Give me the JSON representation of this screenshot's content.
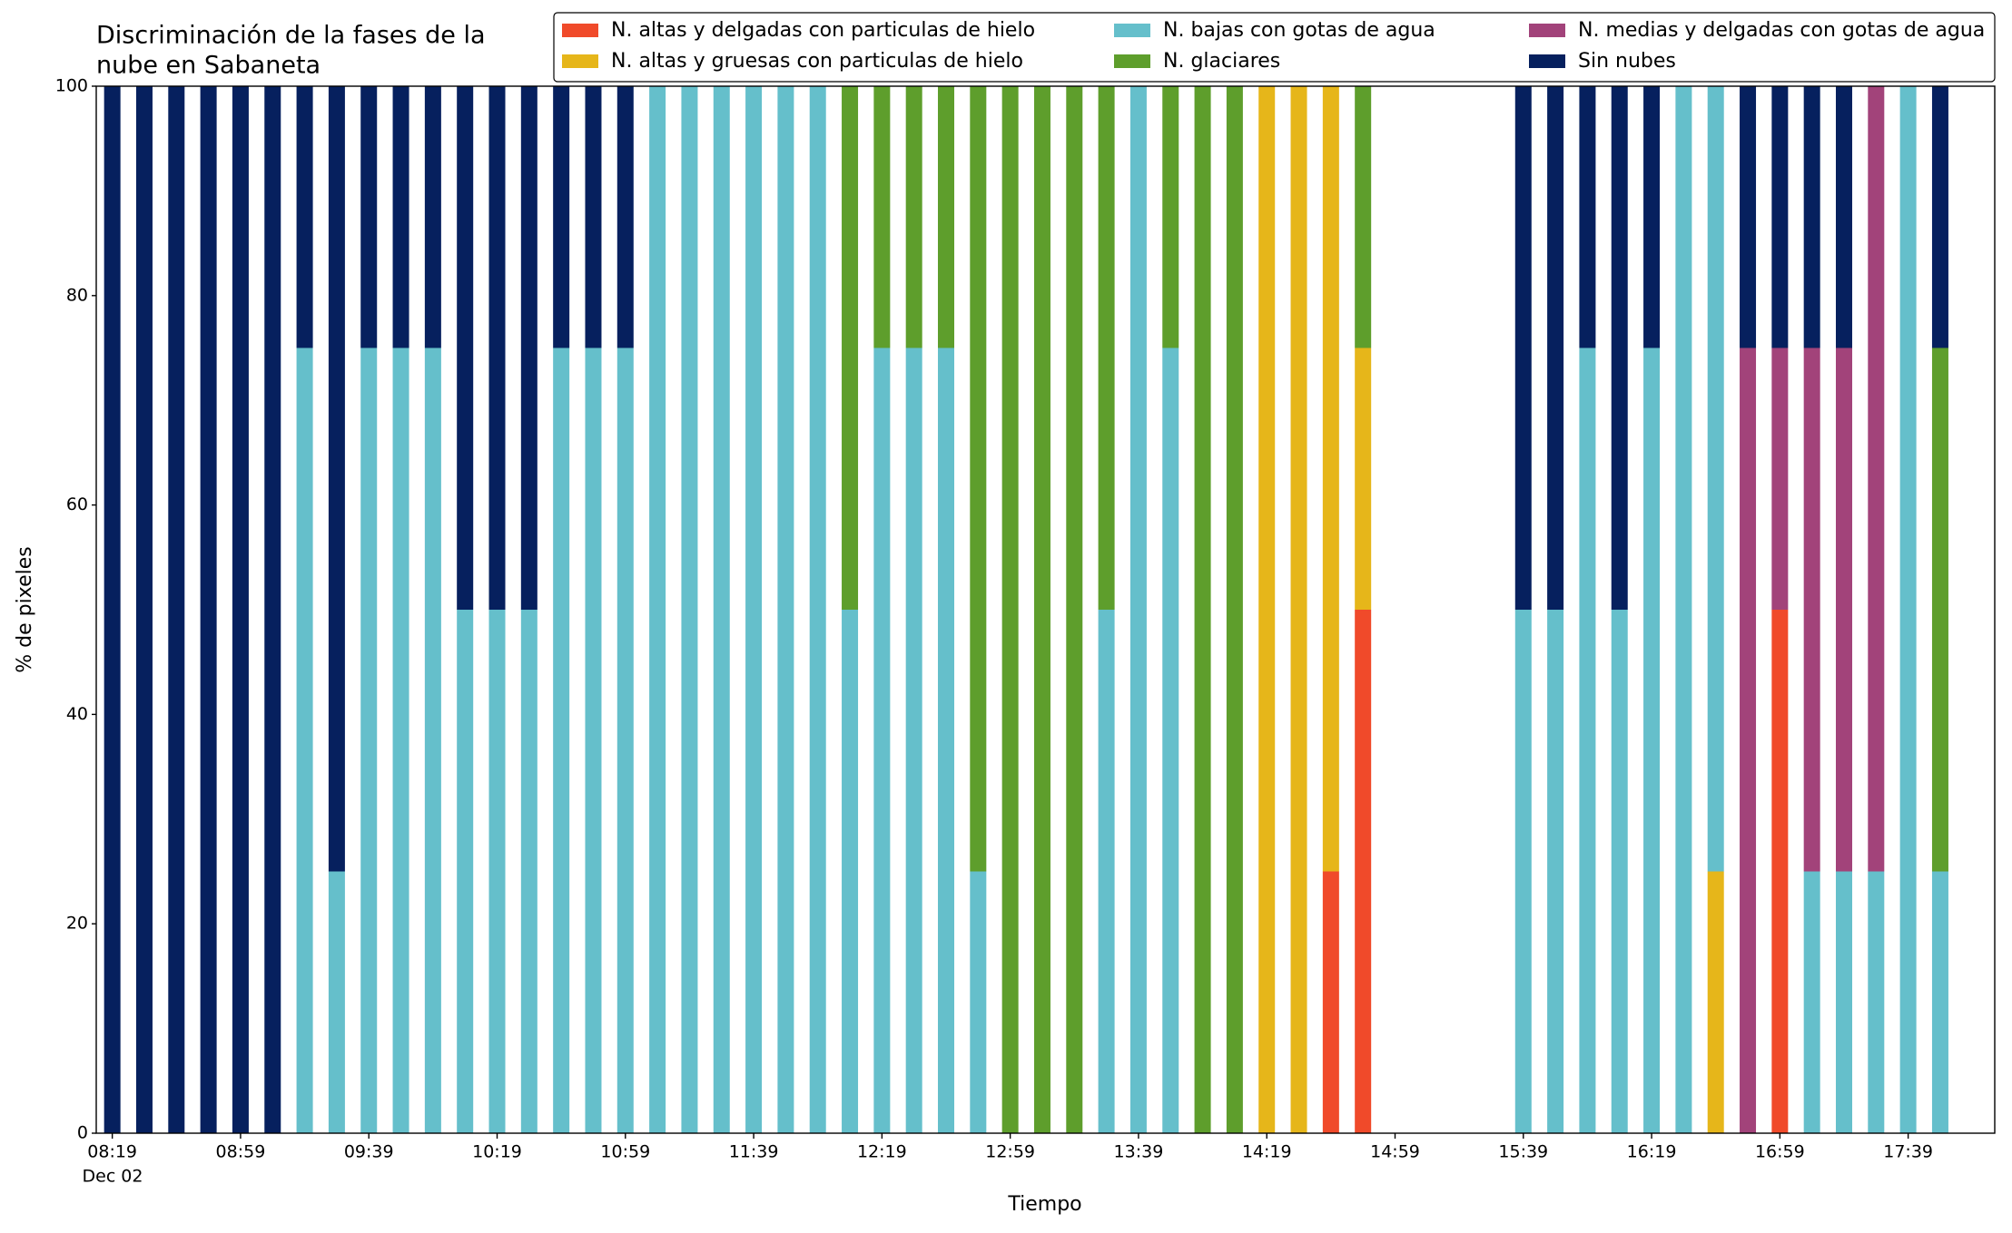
{
  "chart_data": {
    "type": "stacked_bar",
    "title": [
      "Discriminación de la fases de la",
      "nube en Sabaneta"
    ],
    "x_label": "Tiempo",
    "y_label": "% de pixeles",
    "x_date_label": "Dec 02",
    "x": [
      "08:19",
      "08:29",
      "08:39",
      "08:49",
      "08:59",
      "09:09",
      "09:19",
      "09:29",
      "09:39",
      "09:49",
      "09:59",
      "10:09",
      "10:19",
      "10:29",
      "10:39",
      "10:49",
      "10:59",
      "11:09",
      "11:19",
      "11:29",
      "11:39",
      "11:49",
      "11:59",
      "12:09",
      "12:19",
      "12:29",
      "12:39",
      "12:49",
      "12:59",
      "13:09",
      "13:19",
      "13:29",
      "13:39",
      "13:49",
      "13:59",
      "14:09",
      "14:19",
      "14:29",
      "14:39",
      "14:49",
      "15:39",
      "15:49",
      "15:59",
      "16:09",
      "16:19",
      "16:29",
      "16:39",
      "16:49",
      "16:59",
      "17:09",
      "17:19",
      "17:29",
      "17:39",
      "17:49"
    ],
    "series": [
      {
        "name": "N. altas y delgadas con particulas de hielo",
        "color": "#f04a2a",
        "values": [
          0,
          0,
          0,
          0,
          0,
          0,
          0,
          0,
          0,
          0,
          0,
          0,
          0,
          0,
          0,
          0,
          0,
          0,
          0,
          0,
          0,
          0,
          0,
          0,
          0,
          0,
          0,
          0,
          0,
          0,
          0,
          0,
          0,
          0,
          0,
          0,
          0,
          0,
          25,
          50,
          0,
          0,
          0,
          0,
          0,
          0,
          0,
          0,
          50,
          0,
          0,
          0,
          0,
          0
        ]
      },
      {
        "name": "N. altas y gruesas con particulas de hielo",
        "color": "#e6b61a",
        "values": [
          0,
          0,
          0,
          0,
          0,
          0,
          0,
          0,
          0,
          0,
          0,
          0,
          0,
          0,
          0,
          0,
          0,
          0,
          0,
          0,
          0,
          0,
          0,
          0,
          0,
          0,
          0,
          0,
          0,
          0,
          0,
          0,
          0,
          0,
          0,
          0,
          100,
          100,
          75,
          25,
          0,
          0,
          0,
          0,
          0,
          0,
          25,
          0,
          0,
          0,
          0,
          0,
          0,
          0
        ]
      },
      {
        "name": "N. bajas con gotas de agua",
        "color": "#65bfcb",
        "values": [
          0,
          0,
          0,
          0,
          0,
          0,
          75,
          25,
          75,
          75,
          75,
          50,
          50,
          50,
          75,
          75,
          75,
          100,
          100,
          100,
          100,
          100,
          100,
          50,
          75,
          75,
          75,
          25,
          0,
          0,
          0,
          50,
          100,
          75,
          0,
          0,
          0,
          0,
          0,
          0,
          50,
          50,
          75,
          50,
          75,
          100,
          75,
          0,
          0,
          25,
          25,
          25,
          100,
          25
        ]
      },
      {
        "name": "N. glaciares",
        "color": "#5e9e2c",
        "values": [
          0,
          0,
          0,
          0,
          0,
          0,
          0,
          0,
          0,
          0,
          0,
          0,
          0,
          0,
          0,
          0,
          0,
          0,
          0,
          0,
          0,
          0,
          0,
          50,
          25,
          25,
          25,
          75,
          100,
          100,
          100,
          50,
          0,
          25,
          100,
          100,
          0,
          0,
          0,
          25,
          0,
          0,
          0,
          0,
          0,
          0,
          0,
          0,
          0,
          0,
          0,
          0,
          0,
          50
        ]
      },
      {
        "name": "N. medias y delgadas con gotas de agua",
        "color": "#a2437a",
        "values": [
          0,
          0,
          0,
          0,
          0,
          0,
          0,
          0,
          0,
          0,
          0,
          0,
          0,
          0,
          0,
          0,
          0,
          0,
          0,
          0,
          0,
          0,
          0,
          0,
          0,
          0,
          0,
          0,
          0,
          0,
          0,
          0,
          0,
          0,
          0,
          0,
          0,
          0,
          0,
          0,
          0,
          0,
          0,
          0,
          0,
          0,
          0,
          75,
          25,
          50,
          50,
          75,
          0,
          0
        ]
      },
      {
        "name": "Sin nubes",
        "color": "#06205e",
        "values": [
          100,
          100,
          100,
          100,
          100,
          100,
          25,
          75,
          25,
          25,
          25,
          50,
          50,
          50,
          25,
          25,
          25,
          0,
          0,
          0,
          0,
          0,
          0,
          0,
          0,
          0,
          0,
          0,
          0,
          0,
          0,
          0,
          0,
          0,
          0,
          0,
          0,
          0,
          0,
          0,
          50,
          50,
          25,
          50,
          25,
          0,
          0,
          25,
          25,
          25,
          25,
          0,
          0,
          25
        ]
      }
    ],
    "xlim": [
      "08:14",
      "18:06"
    ],
    "xticks": [
      "08:19",
      "08:59",
      "09:39",
      "10:19",
      "10:59",
      "11:39",
      "12:19",
      "12:59",
      "13:39",
      "14:19",
      "14:59",
      "15:39",
      "16:19",
      "16:59",
      "17:39"
    ],
    "ylim": [
      0,
      100
    ],
    "yticks": [
      0,
      20,
      40,
      60,
      80,
      100
    ],
    "grid": false,
    "legend": "top"
  }
}
